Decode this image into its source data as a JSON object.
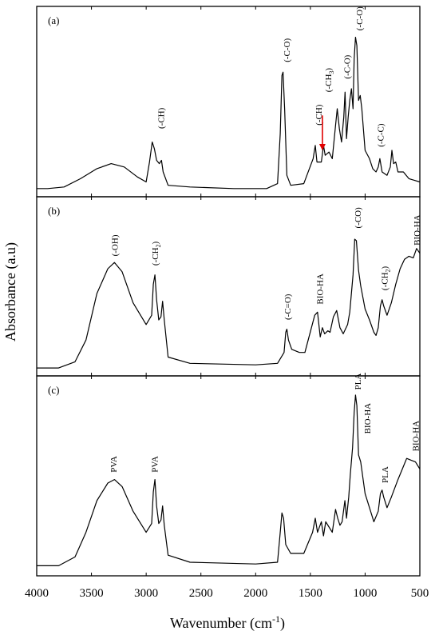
{
  "chart_data": {
    "type": "line",
    "xlabel": "Wavenumber (cm",
    "xlabel_sup": "-1",
    "xlabel_close": ")",
    "ylabel": "Absorbance (a.u)",
    "xlim": [
      4000,
      500
    ],
    "x_ticks": [
      4000,
      3500,
      3000,
      2500,
      2000,
      1500,
      1000,
      500
    ],
    "panels": [
      {
        "label": "(a)",
        "points": [
          [
            4000,
            0.02
          ],
          [
            3900,
            0.02
          ],
          [
            3750,
            0.03
          ],
          [
            3600,
            0.08
          ],
          [
            3450,
            0.14
          ],
          [
            3320,
            0.17
          ],
          [
            3200,
            0.15
          ],
          [
            3080,
            0.09
          ],
          [
            3000,
            0.06
          ],
          [
            2970,
            0.18
          ],
          [
            2945,
            0.3
          ],
          [
            2925,
            0.26
          ],
          [
            2905,
            0.19
          ],
          [
            2880,
            0.17
          ],
          [
            2860,
            0.19
          ],
          [
            2845,
            0.12
          ],
          [
            2800,
            0.04
          ],
          [
            2600,
            0.03
          ],
          [
            2200,
            0.02
          ],
          [
            1900,
            0.02
          ],
          [
            1800,
            0.05
          ],
          [
            1775,
            0.35
          ],
          [
            1760,
            0.7
          ],
          [
            1750,
            0.72
          ],
          [
            1735,
            0.5
          ],
          [
            1715,
            0.1
          ],
          [
            1680,
            0.04
          ],
          [
            1560,
            0.05
          ],
          [
            1475,
            0.2
          ],
          [
            1455,
            0.28
          ],
          [
            1440,
            0.18
          ],
          [
            1400,
            0.18
          ],
          [
            1380,
            0.28
          ],
          [
            1365,
            0.22
          ],
          [
            1330,
            0.24
          ],
          [
            1300,
            0.2
          ],
          [
            1270,
            0.4
          ],
          [
            1255,
            0.5
          ],
          [
            1235,
            0.38
          ],
          [
            1215,
            0.3
          ],
          [
            1195,
            0.45
          ],
          [
            1183,
            0.6
          ],
          [
            1170,
            0.32
          ],
          [
            1155,
            0.45
          ],
          [
            1140,
            0.55
          ],
          [
            1125,
            0.62
          ],
          [
            1110,
            0.5
          ],
          [
            1100,
            0.8
          ],
          [
            1088,
            0.93
          ],
          [
            1075,
            0.88
          ],
          [
            1060,
            0.55
          ],
          [
            1045,
            0.58
          ],
          [
            1030,
            0.5
          ],
          [
            1000,
            0.25
          ],
          [
            960,
            0.2
          ],
          [
            930,
            0.14
          ],
          [
            900,
            0.12
          ],
          [
            880,
            0.15
          ],
          [
            865,
            0.2
          ],
          [
            845,
            0.12
          ],
          [
            800,
            0.1
          ],
          [
            770,
            0.15
          ],
          [
            755,
            0.25
          ],
          [
            740,
            0.17
          ],
          [
            720,
            0.18
          ],
          [
            700,
            0.12
          ],
          [
            650,
            0.12
          ],
          [
            600,
            0.08
          ],
          [
            550,
            0.07
          ],
          [
            500,
            0.06
          ]
        ]
      },
      {
        "label": "(b)",
        "points": [
          [
            4000,
            0.02
          ],
          [
            3800,
            0.02
          ],
          [
            3650,
            0.06
          ],
          [
            3550,
            0.2
          ],
          [
            3450,
            0.5
          ],
          [
            3350,
            0.66
          ],
          [
            3290,
            0.7
          ],
          [
            3220,
            0.64
          ],
          [
            3120,
            0.44
          ],
          [
            3000,
            0.3
          ],
          [
            2950,
            0.36
          ],
          [
            2935,
            0.56
          ],
          [
            2920,
            0.62
          ],
          [
            2905,
            0.46
          ],
          [
            2885,
            0.33
          ],
          [
            2865,
            0.35
          ],
          [
            2850,
            0.45
          ],
          [
            2835,
            0.33
          ],
          [
            2800,
            0.09
          ],
          [
            2600,
            0.05
          ],
          [
            2000,
            0.04
          ],
          [
            1800,
            0.05
          ],
          [
            1740,
            0.12
          ],
          [
            1725,
            0.25
          ],
          [
            1715,
            0.27
          ],
          [
            1700,
            0.2
          ],
          [
            1670,
            0.14
          ],
          [
            1600,
            0.12
          ],
          [
            1550,
            0.12
          ],
          [
            1460,
            0.36
          ],
          [
            1435,
            0.38
          ],
          [
            1410,
            0.22
          ],
          [
            1390,
            0.28
          ],
          [
            1370,
            0.24
          ],
          [
            1340,
            0.26
          ],
          [
            1320,
            0.25
          ],
          [
            1290,
            0.35
          ],
          [
            1260,
            0.39
          ],
          [
            1230,
            0.28
          ],
          [
            1200,
            0.24
          ],
          [
            1160,
            0.3
          ],
          [
            1140,
            0.38
          ],
          [
            1110,
            0.62
          ],
          [
            1095,
            0.85
          ],
          [
            1080,
            0.84
          ],
          [
            1060,
            0.65
          ],
          [
            1040,
            0.55
          ],
          [
            1000,
            0.4
          ],
          [
            960,
            0.33
          ],
          [
            920,
            0.25
          ],
          [
            900,
            0.23
          ],
          [
            880,
            0.28
          ],
          [
            860,
            0.42
          ],
          [
            845,
            0.46
          ],
          [
            830,
            0.42
          ],
          [
            800,
            0.36
          ],
          [
            760,
            0.44
          ],
          [
            720,
            0.56
          ],
          [
            680,
            0.66
          ],
          [
            640,
            0.72
          ],
          [
            600,
            0.74
          ],
          [
            560,
            0.73
          ],
          [
            530,
            0.79
          ],
          [
            500,
            0.76
          ]
        ]
      },
      {
        "label": "(c)",
        "points": [
          [
            4000,
            0.03
          ],
          [
            3800,
            0.03
          ],
          [
            3650,
            0.08
          ],
          [
            3550,
            0.22
          ],
          [
            3450,
            0.4
          ],
          [
            3350,
            0.5
          ],
          [
            3290,
            0.52
          ],
          [
            3220,
            0.48
          ],
          [
            3120,
            0.34
          ],
          [
            3000,
            0.22
          ],
          [
            2950,
            0.27
          ],
          [
            2935,
            0.45
          ],
          [
            2920,
            0.52
          ],
          [
            2905,
            0.37
          ],
          [
            2885,
            0.27
          ],
          [
            2865,
            0.29
          ],
          [
            2850,
            0.37
          ],
          [
            2835,
            0.26
          ],
          [
            2800,
            0.09
          ],
          [
            2600,
            0.05
          ],
          [
            2000,
            0.04
          ],
          [
            1800,
            0.05
          ],
          [
            1775,
            0.22
          ],
          [
            1760,
            0.33
          ],
          [
            1745,
            0.3
          ],
          [
            1725,
            0.15
          ],
          [
            1680,
            0.1
          ],
          [
            1560,
            0.1
          ],
          [
            1480,
            0.22
          ],
          [
            1455,
            0.3
          ],
          [
            1435,
            0.22
          ],
          [
            1400,
            0.28
          ],
          [
            1380,
            0.2
          ],
          [
            1360,
            0.28
          ],
          [
            1330,
            0.25
          ],
          [
            1300,
            0.22
          ],
          [
            1270,
            0.35
          ],
          [
            1250,
            0.3
          ],
          [
            1230,
            0.26
          ],
          [
            1210,
            0.28
          ],
          [
            1185,
            0.4
          ],
          [
            1170,
            0.3
          ],
          [
            1150,
            0.42
          ],
          [
            1135,
            0.55
          ],
          [
            1115,
            0.7
          ],
          [
            1100,
            0.9
          ],
          [
            1088,
            1.0
          ],
          [
            1075,
            0.94
          ],
          [
            1060,
            0.66
          ],
          [
            1040,
            0.62
          ],
          [
            1000,
            0.44
          ],
          [
            960,
            0.36
          ],
          [
            920,
            0.28
          ],
          [
            880,
            0.34
          ],
          [
            860,
            0.44
          ],
          [
            845,
            0.46
          ],
          [
            830,
            0.42
          ],
          [
            800,
            0.36
          ],
          [
            760,
            0.42
          ],
          [
            700,
            0.52
          ],
          [
            660,
            0.58
          ],
          [
            620,
            0.64
          ],
          [
            580,
            0.63
          ],
          [
            540,
            0.62
          ],
          [
            500,
            0.58
          ]
        ]
      }
    ],
    "annotations": [
      {
        "panel": 0,
        "text": "(-CH)",
        "x": 2865,
        "y": 0.38
      },
      {
        "panel": 0,
        "text": "(-C-O)",
        "x": 1718,
        "y": 0.78
      },
      {
        "panel": 0,
        "text": "(-CH)",
        "x": 1425,
        "y": 0.4
      },
      {
        "panel": 0,
        "text": "(-CH",
        "sub": "3",
        "close": ")",
        "x": 1340,
        "y": 0.6
      },
      {
        "panel": 0,
        "text": "(-C-O)",
        "x": 1168,
        "y": 0.68
      },
      {
        "panel": 0,
        "text": "(-C-O)",
        "x": 1055,
        "y": 0.97
      },
      {
        "panel": 0,
        "text": "(-C-C)",
        "x": 860,
        "y": 0.27
      },
      {
        "panel": 1,
        "text": "(-OH)",
        "x": 3290,
        "y": 0.74
      },
      {
        "panel": 1,
        "text": "(-CH",
        "sub": "2",
        "close": ")",
        "x": 2920,
        "y": 0.68
      },
      {
        "panel": 1,
        "text": "(-C=O)",
        "x": 1710,
        "y": 0.33
      },
      {
        "panel": 1,
        "text": "BIO-HA",
        "x": 1415,
        "y": 0.43
      },
      {
        "panel": 1,
        "text": "(-CO)",
        "x": 1070,
        "y": 0.92
      },
      {
        "panel": 1,
        "text": "(-CH",
        "sub": "2",
        "close": ")",
        "x": 825,
        "y": 0.52
      },
      {
        "panel": 1,
        "text": "BIO-HA",
        "x": 530,
        "y": 0.81
      },
      {
        "panel": 2,
        "text": "PVA",
        "x": 3300,
        "y": 0.56
      },
      {
        "panel": 2,
        "text": "PVA",
        "x": 2925,
        "y": 0.56
      },
      {
        "panel": 2,
        "text": "PLA",
        "x": 1070,
        "y": 1.03
      },
      {
        "panel": 2,
        "text": "BIO-HA",
        "x": 980,
        "y": 0.78
      },
      {
        "panel": 2,
        "text": "PLA",
        "x": 820,
        "y": 0.5
      },
      {
        "panel": 2,
        "text": "BIO-HA",
        "x": 540,
        "y": 0.68
      }
    ],
    "arrows": [
      {
        "panel": 0,
        "x": 1390,
        "y_from": 0.46,
        "y_to": 0.25,
        "color": "#e00000"
      }
    ],
    "colors": {
      "line": "#000000",
      "arrow": "#e00000"
    }
  }
}
